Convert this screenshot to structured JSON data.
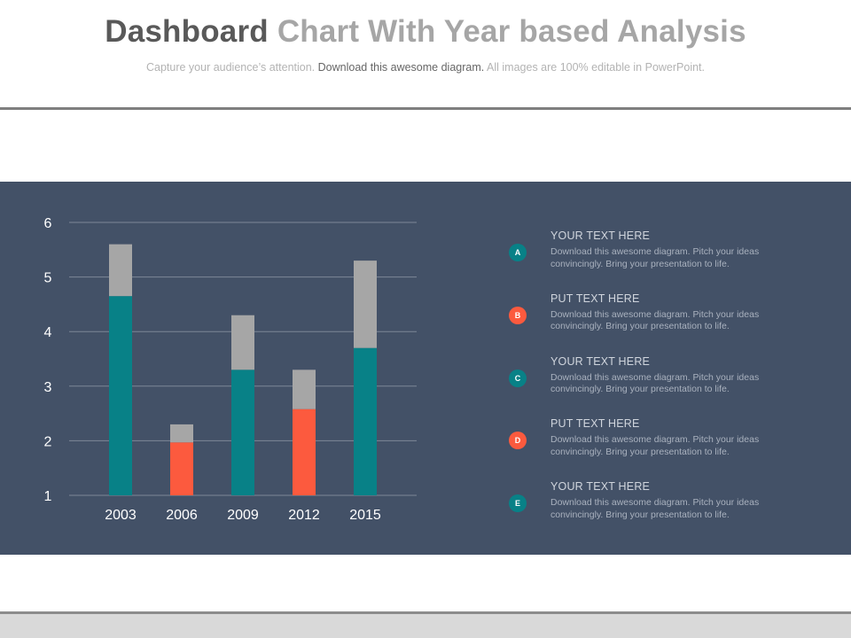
{
  "header": {
    "title_dark": "Dashboard",
    "title_light": "Chart With Year based Analysis",
    "subtitle_pre": "Capture your audience’s attention.",
    "subtitle_mid": "Download this awesome diagram.",
    "subtitle_post": "All images are 100% editable in PowerPoint."
  },
  "colors": {
    "panel": "#435167",
    "teal": "#088187",
    "orange": "#fc5a3e",
    "gray": "#a6a6a6",
    "grid": "#7d8797",
    "tick_text": "#ffffff"
  },
  "chart_data": {
    "type": "bar",
    "stacked": true,
    "categories": [
      "2003",
      "2006",
      "2009",
      "2012",
      "2015"
    ],
    "baseline": 1,
    "ylim": [
      1,
      6
    ],
    "yticks": [
      1,
      2,
      3,
      4,
      5,
      6
    ],
    "grid": true,
    "bars": [
      {
        "lower": 4.65,
        "upper": 5.6,
        "lower_color": "teal"
      },
      {
        "lower": 1.97,
        "upper": 2.3,
        "lower_color": "orange"
      },
      {
        "lower": 3.3,
        "upper": 4.3,
        "lower_color": "teal"
      },
      {
        "lower": 2.58,
        "upper": 3.3,
        "lower_color": "orange"
      },
      {
        "lower": 3.7,
        "upper": 5.3,
        "lower_color": "teal"
      }
    ]
  },
  "legend": {
    "items": [
      {
        "badge": "A",
        "color": "teal",
        "heading": "YOUR TEXT HERE",
        "body": "Download this awesome diagram. Pitch your ideas convincingly. Bring your presentation to life."
      },
      {
        "badge": "B",
        "color": "orange",
        "heading": "PUT TEXT HERE",
        "body": "Download this awesome diagram. Pitch your ideas convincingly. Bring your presentation to life."
      },
      {
        "badge": "C",
        "color": "teal",
        "heading": "YOUR TEXT HERE",
        "body": "Download this awesome diagram. Pitch your ideas convincingly. Bring your presentation to life."
      },
      {
        "badge": "D",
        "color": "orange",
        "heading": "PUT TEXT HERE",
        "body": "Download this awesome diagram. Pitch your ideas convincingly. Bring your presentation to life."
      },
      {
        "badge": "E",
        "color": "teal",
        "heading": "YOUR TEXT HERE",
        "body": "Download this awesome diagram. Pitch your ideas convincingly. Bring your presentation to life."
      }
    ]
  }
}
